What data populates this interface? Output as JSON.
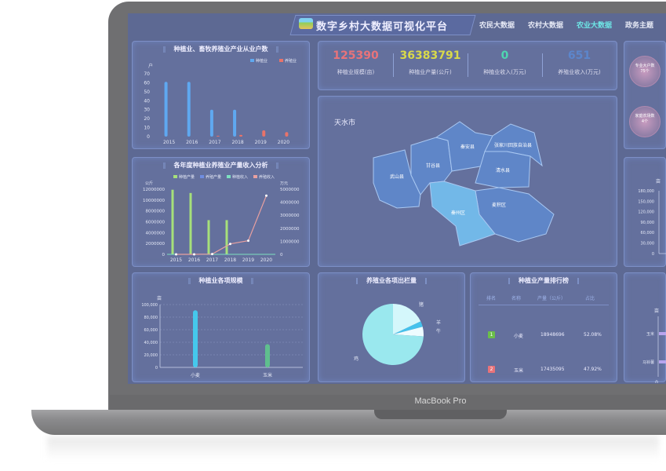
{
  "device_label": "MacBook Pro",
  "header": {
    "title": "数字乡村大数据可视化平台",
    "nav": [
      {
        "label": "农民大数据",
        "active": false
      },
      {
        "label": "农村大数据",
        "active": false
      },
      {
        "label": "农业大数据",
        "active": true
      },
      {
        "label": "政务主题",
        "active": false
      }
    ]
  },
  "stats": [
    {
      "value": "125390",
      "label": "种植业规模(亩)",
      "color": "#e8737a"
    },
    {
      "value": "36383791",
      "label": "种植业产量(公斤)",
      "color": "#d9d94a"
    },
    {
      "value": "0",
      "label": "种植业收入(万元)",
      "color": "#4fd6b0"
    },
    {
      "value": "651",
      "label": "养殖业收入(万元)",
      "color": "#5c86cc"
    }
  ],
  "map": {
    "title": "天水市",
    "districts": [
      "秦安县",
      "张家川回族自治县",
      "甘谷县",
      "武山县",
      "清水县",
      "秦州区",
      "麦积区"
    ],
    "highlight": "秦州区"
  },
  "right": {
    "circles": [
      {
        "label": "专业大户数",
        "value": "75个"
      },
      {
        "label": "家庭农场数",
        "value": "4个"
      }
    ],
    "chart2": {
      "unit": "亩",
      "ticks": [
        "180,000",
        "150,000",
        "120,000",
        "90,000",
        "60,000",
        "30,000",
        "0"
      ]
    },
    "chart3": {
      "unit": "亩",
      "categories": [
        "玉米",
        "马铃薯"
      ],
      "zero": "0"
    }
  },
  "chart_data": [
    {
      "type": "bar",
      "title": "种植业、畜牧养殖业产业从业户数",
      "ylabel": "户",
      "categories": [
        "2015",
        "2016",
        "2017",
        "2018",
        "2019",
        "2020"
      ],
      "ylim": [
        0,
        70
      ],
      "yticks": [
        0,
        10,
        20,
        30,
        40,
        50,
        60,
        70
      ],
      "legend": "top-right",
      "series": [
        {
          "name": "种植业",
          "values": [
            61,
            61,
            30,
            30,
            0,
            0
          ],
          "color": "#5fa8f0"
        },
        {
          "name": "养殖业",
          "values": [
            0,
            0,
            1,
            2,
            7,
            5
          ],
          "color": "#e8736a"
        }
      ]
    },
    {
      "type": "bar+line",
      "title": "各年度种植业养殖业产量收入分析",
      "ylabel": "公斤",
      "y2label": "万元",
      "categories": [
        "2015",
        "2016",
        "2017",
        "2018",
        "2019",
        "2020"
      ],
      "ylim": [
        0,
        12000000
      ],
      "y2lim": [
        0,
        5000000
      ],
      "yticks": [
        "0",
        "2000000",
        "4000000",
        "6000000",
        "8000000",
        "10000000",
        "12000000"
      ],
      "y2ticks": [
        "0",
        "1000000",
        "2000000",
        "3000000",
        "4000000",
        "5000000"
      ],
      "legend": "top",
      "series": [
        {
          "name": "种植产量",
          "type": "bar",
          "axis": "left",
          "values": [
            11900000,
            11300000,
            6300000,
            6300000,
            0,
            0
          ],
          "color": "#a6e07a"
        },
        {
          "name": "养殖产量",
          "type": "bar",
          "axis": "left",
          "values": [
            0,
            0,
            0,
            0,
            0,
            0
          ],
          "color": "#6f8de0"
        },
        {
          "name": "种植收入",
          "type": "line",
          "axis": "right",
          "values": [
            0,
            0,
            0,
            0,
            0,
            0
          ],
          "color": "#7de0c0"
        },
        {
          "name": "养殖收入",
          "type": "line",
          "axis": "right",
          "values": [
            0,
            0,
            20000,
            800000,
            1050000,
            4500000
          ],
          "color": "#e8a0a0"
        }
      ]
    },
    {
      "type": "bar",
      "title": "种植业各项规模",
      "ylabel": "亩",
      "categories": [
        "小麦",
        "玉米"
      ],
      "ylim": [
        0,
        100000
      ],
      "yticks": [
        "0",
        "20,000",
        "40,000",
        "60,000",
        "80,000",
        "100,000"
      ],
      "values": [
        91000,
        37000
      ],
      "colors": [
        "#45c8ec",
        "#5fbf8e"
      ]
    },
    {
      "type": "pie",
      "title": "养殖业各项出栏量",
      "labels": [
        "猪",
        "羊",
        "牛",
        "鸡"
      ],
      "values": [
        18,
        3,
        5,
        74
      ],
      "colors": [
        "#d4f7fb",
        "#45c2ec",
        "#eefcff",
        "#9ae8ee"
      ]
    },
    {
      "type": "table",
      "title": "种植业产量排行榜",
      "columns": [
        "排名",
        "名称",
        "产量（公斤）",
        "占比"
      ],
      "rows": [
        [
          "1",
          "小麦",
          "18948696",
          "52.08%"
        ],
        [
          "2",
          "玉米",
          "17435095",
          "47.92%"
        ]
      ],
      "rank_colors": [
        "#6bbf4a",
        "#e8737a"
      ]
    }
  ]
}
